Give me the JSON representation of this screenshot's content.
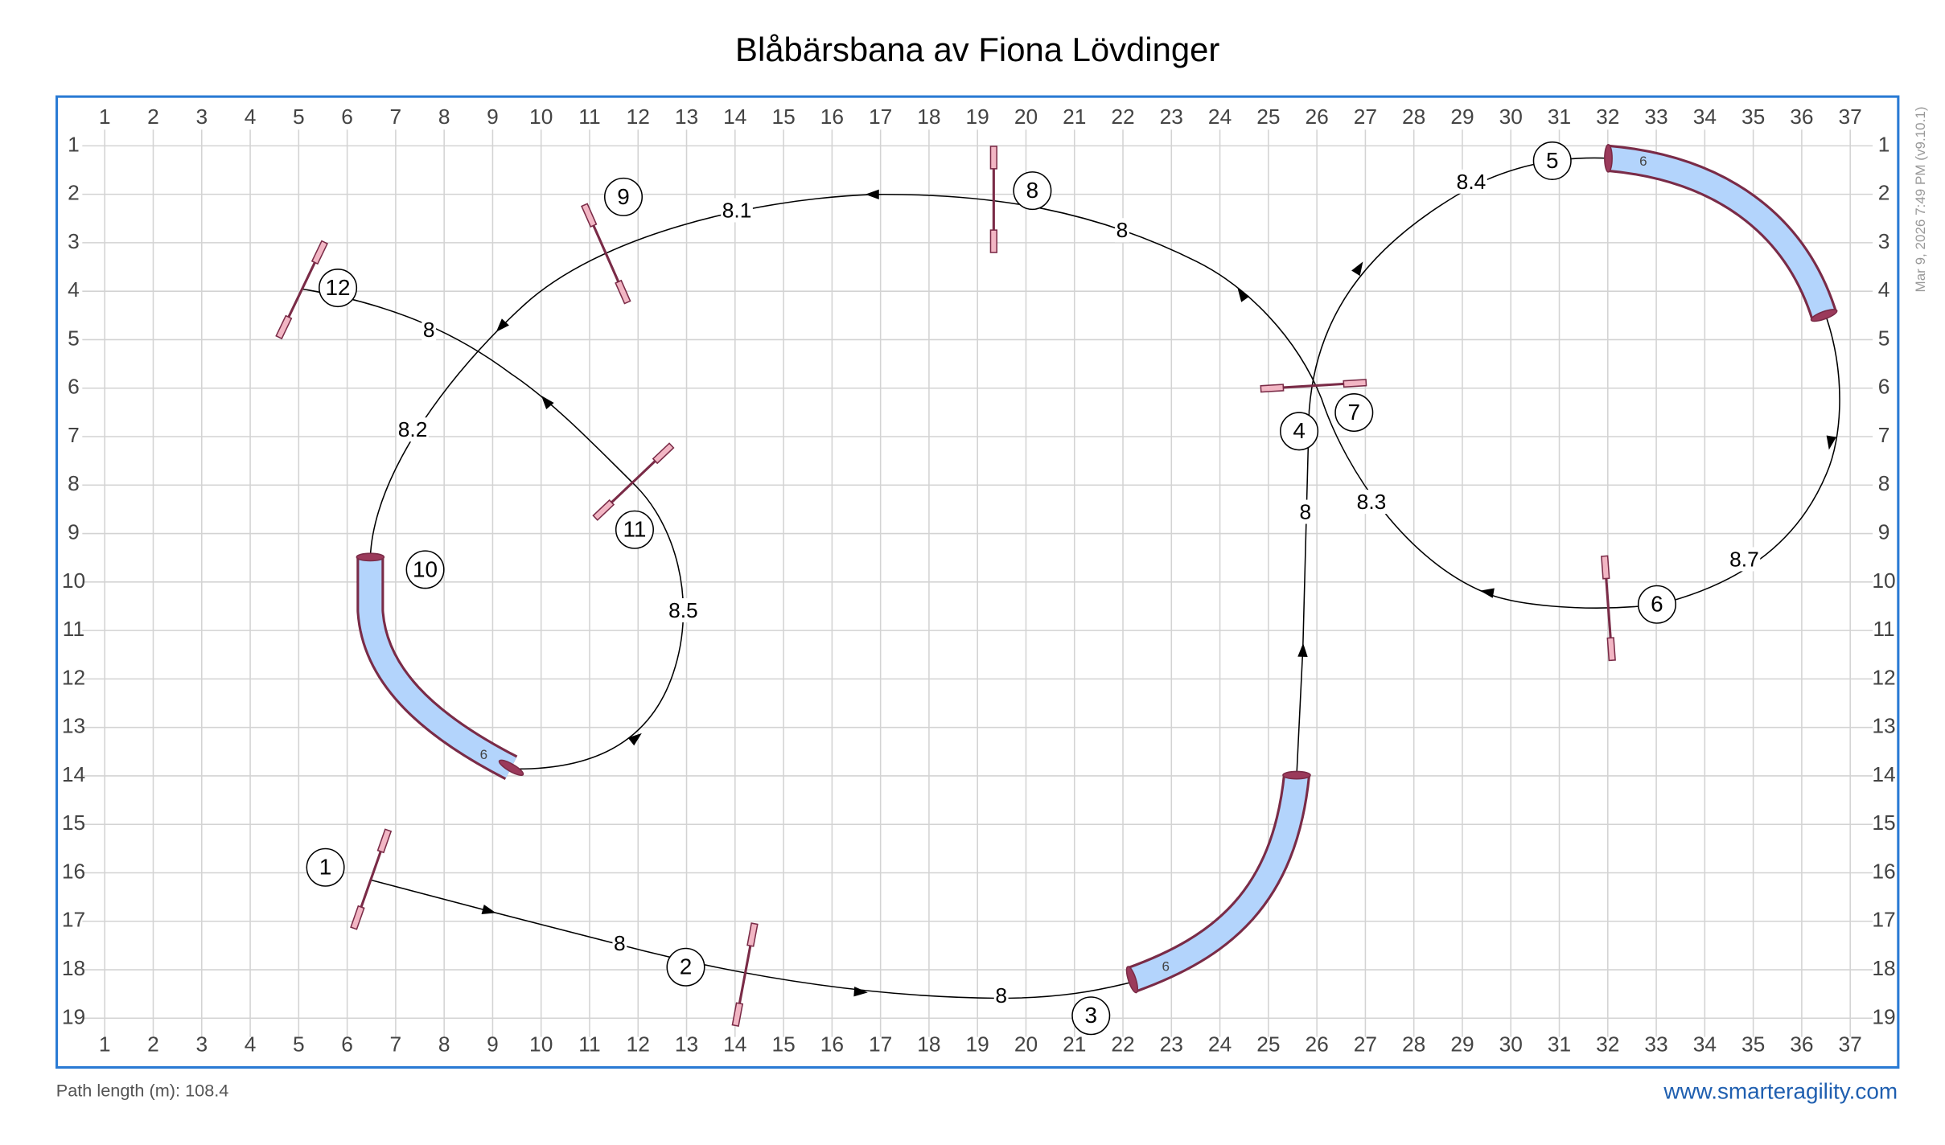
{
  "title": "Blåbärsbana av Fiona Lövdinger",
  "timestamp": "Mar 9, 2026 7:49 PM (v9.10.1)",
  "grid": {
    "columns": [
      1,
      2,
      3,
      4,
      5,
      6,
      7,
      8,
      9,
      10,
      11,
      12,
      13,
      14,
      15,
      16,
      17,
      18,
      19,
      20,
      21,
      22,
      23,
      24,
      25,
      26,
      27,
      28,
      29,
      30,
      31,
      32,
      33,
      34,
      35,
      36,
      37
    ],
    "rows": [
      1,
      2,
      3,
      4,
      5,
      6,
      7,
      8,
      9,
      10,
      11,
      12,
      13,
      14,
      15,
      16,
      17,
      18,
      19
    ]
  },
  "obstacle_numbers": [
    1,
    2,
    3,
    4,
    5,
    6,
    7,
    8,
    9,
    10,
    11,
    12
  ],
  "distances": [
    8,
    8,
    8,
    8.4,
    8.7,
    8.3,
    8,
    8.1,
    8.2,
    8.5,
    8
  ],
  "tunnel_lengths": [
    6,
    6,
    6
  ],
  "footer": {
    "path_length": "Path length (m): 108.4",
    "website": "www.smarteragility.com"
  }
}
